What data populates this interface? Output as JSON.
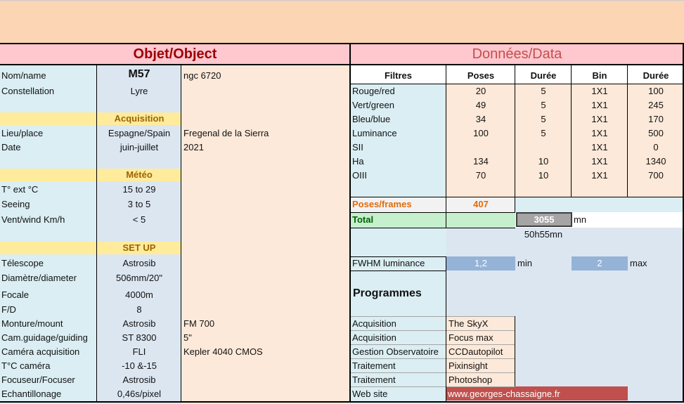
{
  "header": {
    "left_title": "Objet/Object",
    "right_title": "Données/Data"
  },
  "left_rows": [
    {
      "label": "Nom/name",
      "value": "M57",
      "extra": "ngc 6720"
    },
    {
      "label": "Constellation",
      "value": "Lyre",
      "extra": ""
    },
    {
      "section": "Acquisition"
    },
    {
      "label": "Lieu/place",
      "value": "Espagne/Spain",
      "extra": "Fregenal de la Sierra"
    },
    {
      "label": "Date",
      "value": "juin-juillet",
      "extra": "2021"
    },
    {
      "section": "Météo"
    },
    {
      "label": "T° ext °C",
      "value": "15 to 29",
      "extra": ""
    },
    {
      "label": "Seeing",
      "value": "3 to 5",
      "extra": ""
    },
    {
      "label": "Vent/wind  Km/h",
      "value": "< 5",
      "extra": ""
    },
    {
      "section": "SET UP"
    },
    {
      "label": "Télescope",
      "value": "Astrosib",
      "extra": ""
    },
    {
      "label": "Diamètre/diameter",
      "value": "506mm/20\"",
      "extra": ""
    },
    {
      "label": "Focale",
      "value": "4000m",
      "extra": ""
    },
    {
      "label": "F/D",
      "value": "8",
      "extra": ""
    },
    {
      "label": "Monture/mount",
      "value": "Astrosib",
      "extra": "FM 700"
    },
    {
      "label": "Cam.guidage/guiding",
      "value": "ST 8300",
      "extra": "5\""
    },
    {
      "label": "Caméra acquisition",
      "value": "FLI",
      "extra": "Kepler 4040 CMOS"
    },
    {
      "label": "T°C caméra",
      "value": "-10 &-15",
      "extra": ""
    },
    {
      "label": "Focuseur/Focuser",
      "value": "Astrosib",
      "extra": ""
    },
    {
      "label": "Echantillonage",
      "value": "0,46s/pixel",
      "extra": ""
    }
  ],
  "filters": {
    "headers": [
      "Filtres",
      "Poses",
      "Durée",
      "Bin",
      "Durée"
    ],
    "rows": [
      [
        "Rouge/red",
        "20",
        "5",
        "1X1",
        "100"
      ],
      [
        "Vert/green",
        "49",
        "5",
        "1X1",
        "245"
      ],
      [
        "Bleu/blue",
        "34",
        "5",
        "1X1",
        "170"
      ],
      [
        "Luminance",
        "100",
        "5",
        "1X1",
        "500"
      ],
      [
        "SII",
        "",
        "",
        "1X1",
        "0"
      ],
      [
        "Ha",
        "134",
        "10",
        "1X1",
        "1340"
      ],
      [
        "OIII",
        "70",
        "10",
        "1X1",
        "700"
      ]
    ]
  },
  "totals": {
    "frames_label": "Poses/frames",
    "frames_value": "407",
    "total_label": "Total",
    "total_value": "3055",
    "total_unit": "mn",
    "total_hm": "50h55mn"
  },
  "fwhm": {
    "label": "FWHM luminance",
    "min_value": "1,2",
    "min_label": "min",
    "max_value": "2",
    "max_label": "max"
  },
  "programs": {
    "title": "Programmes",
    "rows": [
      [
        "Acquisition",
        "The SkyX"
      ],
      [
        "Acquisition",
        "Focus max"
      ],
      [
        "Gestion Observatoire",
        "CCDautopilot"
      ],
      [
        "Traitement",
        "Pixinsight"
      ],
      [
        "Traitement",
        "Photoshop"
      ],
      [
        "Web site",
        "www.georges-chassaigne.fr"
      ]
    ]
  },
  "colors": {
    "top_band": "#fcd5b4",
    "title_band": "#ffc7ce",
    "title_left": "#9c0006",
    "title_right": "#c0504d",
    "label_bg": "#daeef3",
    "value_bg": "#dce6f1",
    "extra_bg": "#fde9d9",
    "section_bg": "#ffeb9c",
    "section_text": "#9c6500",
    "fwhm_bg": "#95b3d7",
    "total_bg": "#c6efce",
    "total_box": "#a5a5a5",
    "frames_text": "#e26b0a",
    "web_bg": "#c0504d"
  }
}
